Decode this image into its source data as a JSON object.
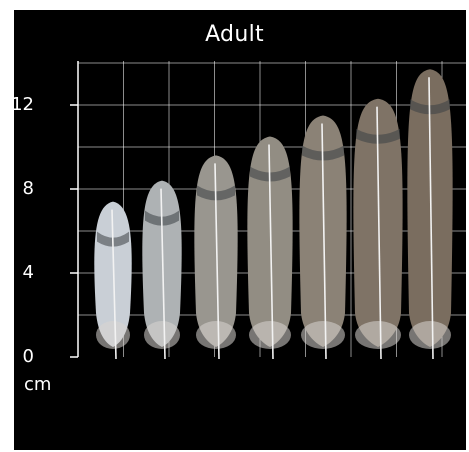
{
  "image": {
    "title": "Adult",
    "unit_label": "cm",
    "axis": {
      "ticks": [
        "0",
        "4",
        "8",
        "12"
      ],
      "tick_values": [
        0,
        4,
        8,
        12
      ],
      "max": 14,
      "grid": true
    },
    "feathers": [
      {
        "length_cm": 7.4,
        "color": "#c9cfd6"
      },
      {
        "length_cm": 8.4,
        "color": "#aeb2b4"
      },
      {
        "length_cm": 9.6,
        "color": "#99968f"
      },
      {
        "length_cm": 10.5,
        "color": "#928d83"
      },
      {
        "length_cm": 11.5,
        "color": "#8b8276"
      },
      {
        "length_cm": 12.3,
        "color": "#7f7366"
      },
      {
        "length_cm": 13.7,
        "color": "#7a6d5f"
      }
    ],
    "colors": {
      "background": "#000000",
      "grid": "#ffffff",
      "text": "#ffffff"
    }
  }
}
